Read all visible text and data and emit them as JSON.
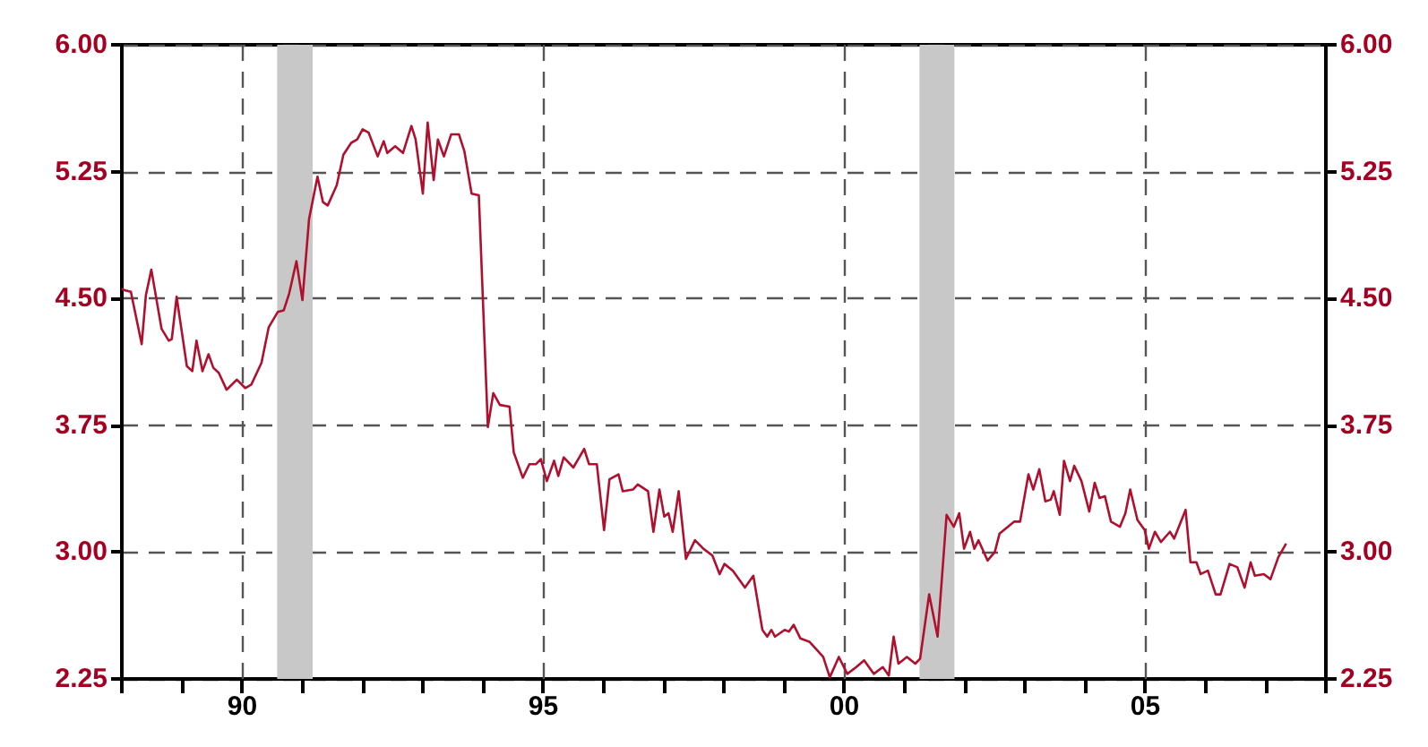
{
  "chart_data": {
    "type": "line",
    "x": [
      1988.0,
      1988.03,
      1988.15,
      1988.33,
      1988.4,
      1988.49,
      1988.66,
      1988.78,
      1988.83,
      1988.91,
      1989.08,
      1989.17,
      1989.24,
      1989.34,
      1989.44,
      1989.52,
      1989.61,
      1989.74,
      1989.91,
      1990.05,
      1990.15,
      1990.32,
      1990.44,
      1990.59,
      1990.69,
      1990.78,
      1990.9,
      1991.0,
      1991.11,
      1991.25,
      1991.34,
      1991.42,
      1991.57,
      1991.68,
      1991.81,
      1991.91,
      1992.0,
      1992.1,
      1992.25,
      1992.35,
      1992.41,
      1992.54,
      1992.67,
      1992.81,
      1992.88,
      1993.0,
      1993.08,
      1993.18,
      1993.25,
      1993.35,
      1993.47,
      1993.6,
      1993.69,
      1993.81,
      1993.93,
      1994.08,
      1994.17,
      1994.28,
      1994.44,
      1994.51,
      1994.66,
      1994.77,
      1994.88,
      1994.96,
      1995.06,
      1995.18,
      1995.25,
      1995.34,
      1995.5,
      1995.68,
      1995.76,
      1995.89,
      1996.01,
      1996.1,
      1996.25,
      1996.32,
      1996.49,
      1996.57,
      1996.74,
      1996.83,
      1996.93,
      1997.01,
      1997.08,
      1997.15,
      1997.25,
      1997.37,
      1997.52,
      1997.66,
      1997.81,
      1997.93,
      1998.01,
      1998.15,
      1998.35,
      1998.49,
      1998.64,
      1998.72,
      1998.79,
      1998.85,
      1999.01,
      1999.08,
      1999.16,
      1999.27,
      1999.42,
      1999.65,
      1999.76,
      1999.91,
      2000.05,
      2000.2,
      2000.33,
      2000.49,
      2000.64,
      2000.74,
      2000.82,
      2000.9,
      2001.04,
      2001.18,
      2001.26,
      2001.41,
      2001.55,
      2001.7,
      2001.82,
      2001.91,
      2001.99,
      2002.09,
      2002.16,
      2002.23,
      2002.38,
      2002.5,
      2002.58,
      2002.82,
      2002.92,
      2003.06,
      2003.14,
      2003.24,
      2003.34,
      2003.43,
      2003.48,
      2003.58,
      2003.65,
      2003.75,
      2003.82,
      2003.94,
      2004.07,
      2004.16,
      2004.24,
      2004.33,
      2004.43,
      2004.58,
      2004.67,
      2004.75,
      2004.87,
      2004.99,
      2005.06,
      2005.16,
      2005.26,
      2005.41,
      2005.48,
      2005.67,
      2005.75,
      2005.85,
      2005.92,
      2006.04,
      2006.17,
      2006.25,
      2006.4,
      2006.53,
      2006.65,
      2006.75,
      2006.82,
      2006.97,
      2007.08,
      2007.21,
      2007.34
    ],
    "series": [
      {
        "color": "#b0102e",
        "values": [
          4.56,
          4.55,
          4.54,
          4.23,
          4.52,
          4.67,
          4.32,
          4.25,
          4.26,
          4.51,
          4.1,
          4.07,
          4.25,
          4.07,
          4.17,
          4.09,
          4.06,
          3.96,
          4.02,
          3.97,
          3.99,
          4.12,
          4.33,
          4.42,
          4.43,
          4.53,
          4.72,
          4.49,
          4.97,
          5.22,
          5.07,
          5.05,
          5.17,
          5.35,
          5.42,
          5.44,
          5.5,
          5.48,
          5.34,
          5.43,
          5.36,
          5.4,
          5.36,
          5.52,
          5.44,
          5.12,
          5.54,
          5.2,
          5.44,
          5.34,
          5.47,
          5.47,
          5.37,
          5.12,
          5.11,
          3.74,
          3.94,
          3.87,
          3.86,
          3.59,
          3.44,
          3.52,
          3.52,
          3.55,
          3.42,
          3.54,
          3.45,
          3.56,
          3.5,
          3.61,
          3.52,
          3.52,
          3.13,
          3.43,
          3.46,
          3.36,
          3.37,
          3.4,
          3.36,
          3.12,
          3.37,
          3.21,
          3.23,
          3.12,
          3.36,
          2.96,
          3.07,
          3.02,
          2.98,
          2.87,
          2.93,
          2.89,
          2.79,
          2.86,
          2.54,
          2.5,
          2.54,
          2.5,
          2.54,
          2.53,
          2.57,
          2.49,
          2.47,
          2.38,
          2.26,
          2.38,
          2.28,
          2.32,
          2.36,
          2.28,
          2.32,
          2.27,
          2.5,
          2.34,
          2.38,
          2.34,
          2.37,
          2.75,
          2.5,
          3.22,
          3.15,
          3.23,
          3.02,
          3.12,
          3.02,
          3.07,
          2.95,
          3.0,
          3.11,
          3.18,
          3.18,
          3.46,
          3.37,
          3.49,
          3.3,
          3.31,
          3.36,
          3.22,
          3.54,
          3.42,
          3.51,
          3.42,
          3.24,
          3.41,
          3.32,
          3.33,
          3.18,
          3.15,
          3.23,
          3.37,
          3.19,
          3.13,
          3.02,
          3.12,
          3.06,
          3.12,
          3.08,
          3.25,
          2.94,
          2.94,
          2.87,
          2.89,
          2.75,
          2.75,
          2.93,
          2.91,
          2.79,
          2.94,
          2.86,
          2.87,
          2.84,
          2.97,
          3.05
        ]
      }
    ],
    "xlim": [
      1988,
      2008
    ],
    "xticks": [
      {
        "value": 1988,
        "label": null
      },
      {
        "value": 1989,
        "label": null
      },
      {
        "value": 1990,
        "label": "90"
      },
      {
        "value": 1991,
        "label": null
      },
      {
        "value": 1992,
        "label": null
      },
      {
        "value": 1993,
        "label": null
      },
      {
        "value": 1994,
        "label": null
      },
      {
        "value": 1995,
        "label": "95"
      },
      {
        "value": 1996,
        "label": null
      },
      {
        "value": 1997,
        "label": null
      },
      {
        "value": 1998,
        "label": null
      },
      {
        "value": 1999,
        "label": null
      },
      {
        "value": 2000,
        "label": "00"
      },
      {
        "value": 2001,
        "label": null
      },
      {
        "value": 2002,
        "label": null
      },
      {
        "value": 2003,
        "label": null
      },
      {
        "value": 2004,
        "label": null
      },
      {
        "value": 2005,
        "label": "05"
      },
      {
        "value": 2006,
        "label": null
      },
      {
        "value": 2007,
        "label": null
      },
      {
        "value": 2008,
        "label": null
      }
    ],
    "ylim": [
      2.25,
      6
    ],
    "yticks": [
      2.25,
      {
        "value": 3,
        "label": "3.00"
      },
      3.75,
      {
        "value": 4.5,
        "label": "4.50"
      },
      5.25,
      {
        "value": 6,
        "label": "6.00"
      }
    ],
    "y2lim": [
      2.25,
      6
    ],
    "y2ticks": [
      2.25,
      {
        "value": 3,
        "label": "3.00"
      },
      3.75,
      {
        "value": 4.5,
        "label": "4.50"
      },
      5.25,
      {
        "value": 6,
        "label": "6.00"
      }
    ],
    "grid": "y",
    "ref_lines": [
      {
        "axis": "x",
        "value": 1990,
        "line_style": "dashed"
      },
      {
        "axis": "x",
        "value": 1995,
        "line_style": "dashed"
      },
      {
        "axis": "x",
        "value": 2000,
        "line_style": "dashed"
      },
      {
        "axis": "x",
        "value": 2005,
        "line_style": "dashed"
      }
    ],
    "bands": [
      {
        "axis": "x",
        "from": 1990.58,
        "to": 1991.17,
        "color": "#c8c8c8"
      },
      {
        "axis": "x",
        "from": 2001.25,
        "to": 2001.83,
        "color": "#c8c8c8"
      }
    ],
    "marker": "none",
    "line_style": "solid"
  }
}
